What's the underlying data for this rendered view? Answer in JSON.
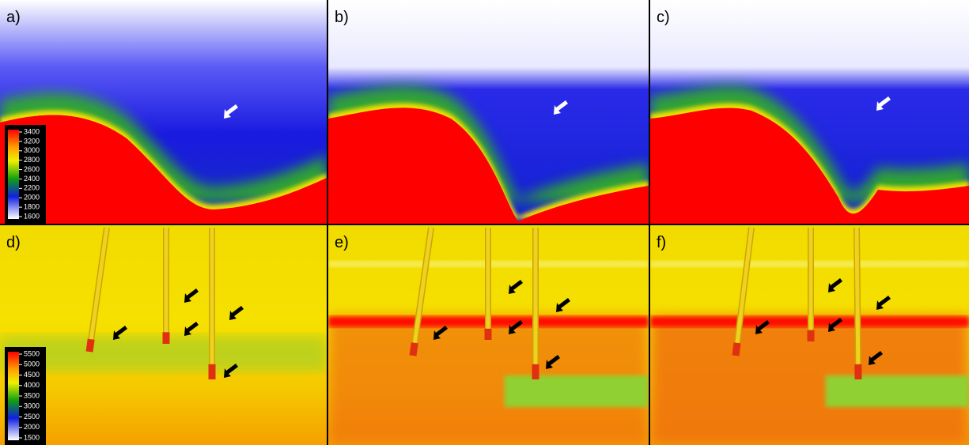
{
  "panels": [
    {
      "label": "a)",
      "colorbar": {
        "ticks": [
          3400,
          3200,
          3000,
          2800,
          2600,
          2400,
          2200,
          2000,
          1800,
          1600
        ]
      }
    },
    {
      "label": "b)"
    },
    {
      "label": "c)"
    },
    {
      "label": "d)",
      "colorbar": {
        "ticks": [
          5500,
          5000,
          4500,
          4000,
          3500,
          3000,
          2500,
          2000,
          1500
        ]
      }
    },
    {
      "label": "e)"
    },
    {
      "label": "f)"
    }
  ]
}
